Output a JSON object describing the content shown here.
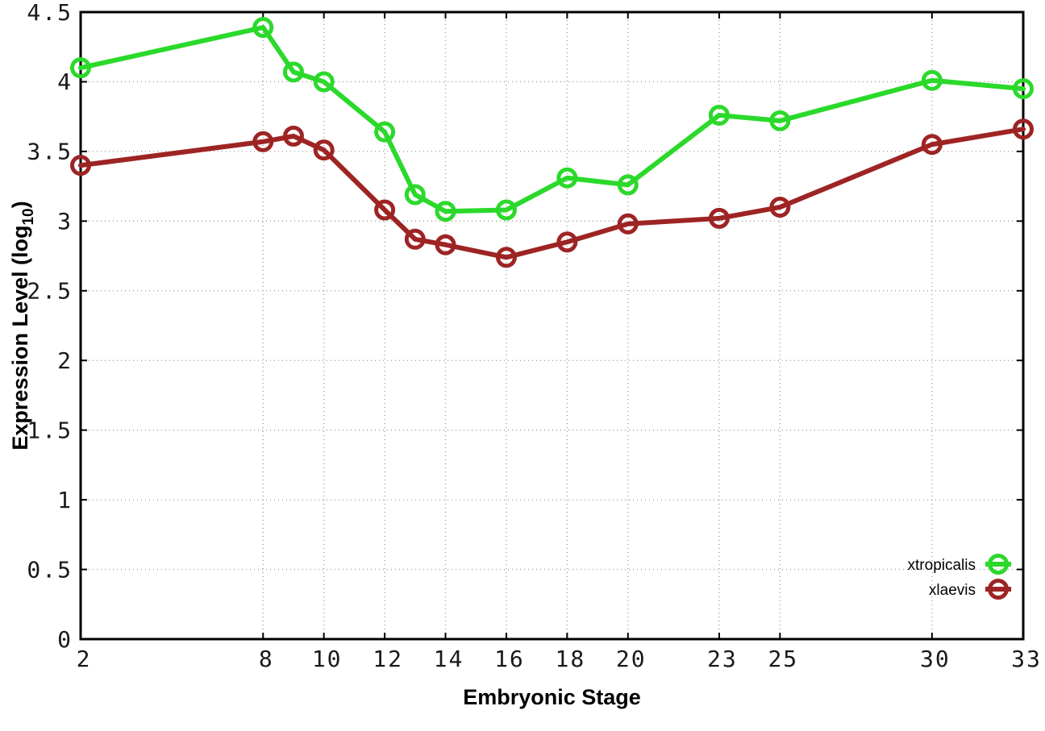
{
  "chart_data": {
    "type": "line",
    "title": "",
    "xlabel": "Embryonic Stage",
    "ylabel": {
      "text": "Expression Level (log10)",
      "prefix": "Expression Level (log",
      "subscript": "10",
      "suffix": ")"
    },
    "x": [
      2,
      8,
      9,
      10,
      12,
      13,
      14,
      16,
      18,
      20,
      23,
      25,
      30,
      33
    ],
    "x_ticks": [
      2,
      8,
      10,
      12,
      14,
      16,
      18,
      20,
      23,
      25,
      30,
      33
    ],
    "y_ticks": [
      0,
      0.5,
      1,
      1.5,
      2,
      2.5,
      3,
      3.5,
      4,
      4.5
    ],
    "xlim": [
      2,
      33
    ],
    "ylim": [
      0,
      4.5
    ],
    "grid": true,
    "legend_position": "bottom-right",
    "marker": "open-circle",
    "series": [
      {
        "name": "xtropicalis",
        "color": "#2bd92b",
        "values": [
          4.1,
          4.39,
          4.07,
          4.0,
          3.64,
          3.19,
          3.07,
          3.08,
          3.31,
          3.26,
          3.76,
          3.72,
          4.01,
          3.95
        ]
      },
      {
        "name": "xlaevis",
        "color": "#9e2424",
        "values": [
          3.4,
          3.57,
          3.61,
          3.51,
          3.08,
          2.87,
          2.83,
          2.74,
          2.85,
          2.98,
          3.02,
          3.1,
          3.55,
          3.66
        ]
      }
    ]
  },
  "style": {
    "background": "#ffffff",
    "frame_color": "#000000",
    "grid_color": "#999999",
    "tick_label_color": "#1a1a1a",
    "axis_label_color": "#000000"
  }
}
